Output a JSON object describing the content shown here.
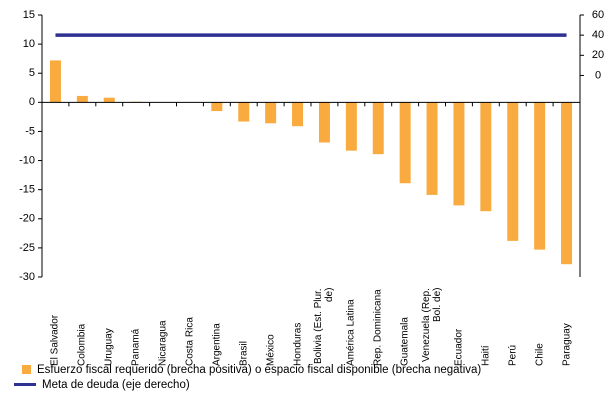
{
  "chart_data": {
    "type": "bar",
    "categories": [
      "El Salvador",
      "Colombia",
      "Uruguay",
      "Panamá",
      "Nicaragua",
      "Costa Rica",
      "Argentina",
      "Brasil",
      "México",
      "Honduras",
      "Bolivia (Est. Plur. de)",
      "América Latina",
      "Rep. Dominicana",
      "Guatemala",
      "Venezuela (Rep. Bol. de)",
      "Ecuador",
      "Haití",
      "Perú",
      "Chile",
      "Paraguay"
    ],
    "series": [
      {
        "name": "Esfuerzo fiscal requerido (brecha positiva) o espacio fiscal disponible (brecha negativa)",
        "color": "#f9ab3f",
        "values": [
          7.2,
          1.1,
          0.8,
          0.1,
          0,
          0,
          -1.5,
          -3.3,
          -3.6,
          -4.1,
          -6.9,
          -8.3,
          -8.9,
          -13.9,
          -15.9,
          -17.7,
          -18.7,
          -23.8,
          -25.3,
          -27.8
        ]
      },
      {
        "name": "Meta de deuda (eje derecho)",
        "color": "#2e3192",
        "axis": "y2",
        "values": [
          40,
          40,
          40,
          40,
          40,
          40,
          40,
          40,
          40,
          40,
          40,
          40,
          40,
          40,
          40,
          40,
          40,
          40,
          40,
          40
        ]
      }
    ],
    "ylim": [
      -30,
      15
    ],
    "yticks": [
      -30,
      -25,
      -20,
      -15,
      -10,
      -5,
      0,
      5,
      10,
      15
    ],
    "y2lim": [
      -200,
      60
    ],
    "y2ticks": [
      0,
      20,
      40,
      60
    ]
  }
}
